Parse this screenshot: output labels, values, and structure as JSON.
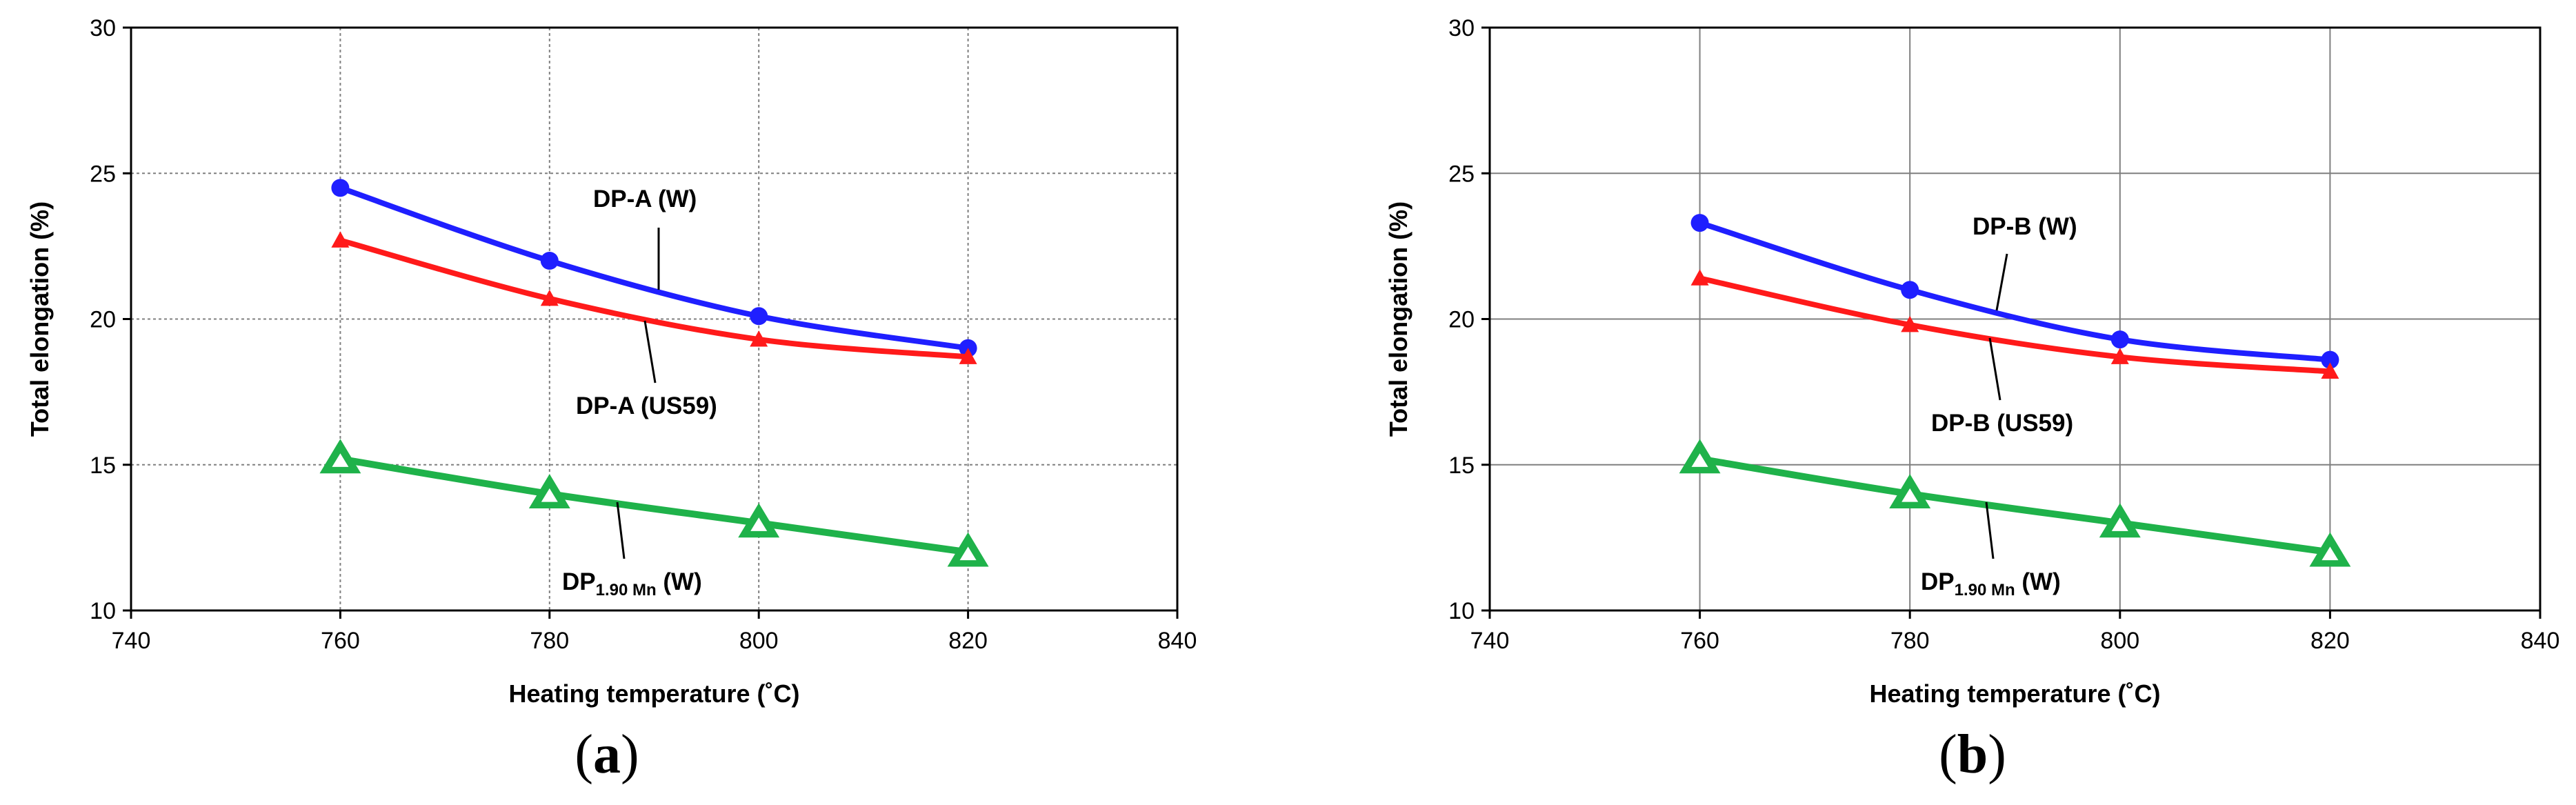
{
  "colors": {
    "blue": "#1f1fff",
    "red": "#ff1a1a",
    "green": "#1fb24a",
    "grid": "#7f7f7f",
    "axis": "#000000"
  },
  "chart_data": [
    {
      "type": "line",
      "panel_label": "(a)",
      "panel_letter": "a",
      "xlabel": "Heating temperature (˚C)",
      "ylabel": "Total elongation (%)",
      "xlim": [
        740,
        840
      ],
      "ylim": [
        10,
        30
      ],
      "xticks": [
        740,
        760,
        780,
        800,
        820,
        840
      ],
      "yticks": [
        10,
        15,
        20,
        25,
        30
      ],
      "grid": true,
      "grid_style": "dotted",
      "series": [
        {
          "name": "DP-A (W)",
          "color": "blue",
          "marker": "circle",
          "x": [
            760,
            780,
            800,
            820
          ],
          "values": [
            24.5,
            22.0,
            20.1,
            19.0
          ]
        },
        {
          "name": "DP-A (US59)",
          "color": "red",
          "marker": "triangle",
          "x": [
            760,
            780,
            800,
            820
          ],
          "values": [
            22.7,
            20.7,
            19.3,
            18.7
          ]
        },
        {
          "name": "DP1.90 Mn (W)",
          "name_main": "DP",
          "name_sub": "1.90 Mn",
          "name_tail": " (W)",
          "color": "green",
          "marker": "triangle-open",
          "x": [
            760,
            780,
            800,
            820
          ],
          "values": [
            15.2,
            14.0,
            13.0,
            12.0
          ]
        }
      ]
    },
    {
      "type": "line",
      "panel_label": "(b)",
      "panel_letter": "b",
      "xlabel": "Heating temperature (˚C)",
      "ylabel": "Total elongation (%)",
      "xlim": [
        740,
        840
      ],
      "ylim": [
        10,
        30
      ],
      "xticks": [
        740,
        760,
        780,
        800,
        820,
        840
      ],
      "yticks": [
        10,
        15,
        20,
        25,
        30
      ],
      "grid": true,
      "grid_style": "solid",
      "series": [
        {
          "name": "DP-B (W)",
          "color": "blue",
          "marker": "circle",
          "x": [
            760,
            780,
            800,
            820
          ],
          "values": [
            23.3,
            21.0,
            19.3,
            18.6
          ]
        },
        {
          "name": "DP-B (US59)",
          "color": "red",
          "marker": "triangle",
          "x": [
            760,
            780,
            800,
            820
          ],
          "values": [
            21.4,
            19.8,
            18.7,
            18.2
          ]
        },
        {
          "name": "DP1.90 Mn (W)",
          "name_main": "DP",
          "name_sub": "1.90 Mn",
          "name_tail": " (W)",
          "color": "green",
          "marker": "triangle-open",
          "x": [
            760,
            780,
            800,
            820
          ],
          "values": [
            15.2,
            14.0,
            13.0,
            12.0
          ]
        }
      ]
    }
  ]
}
